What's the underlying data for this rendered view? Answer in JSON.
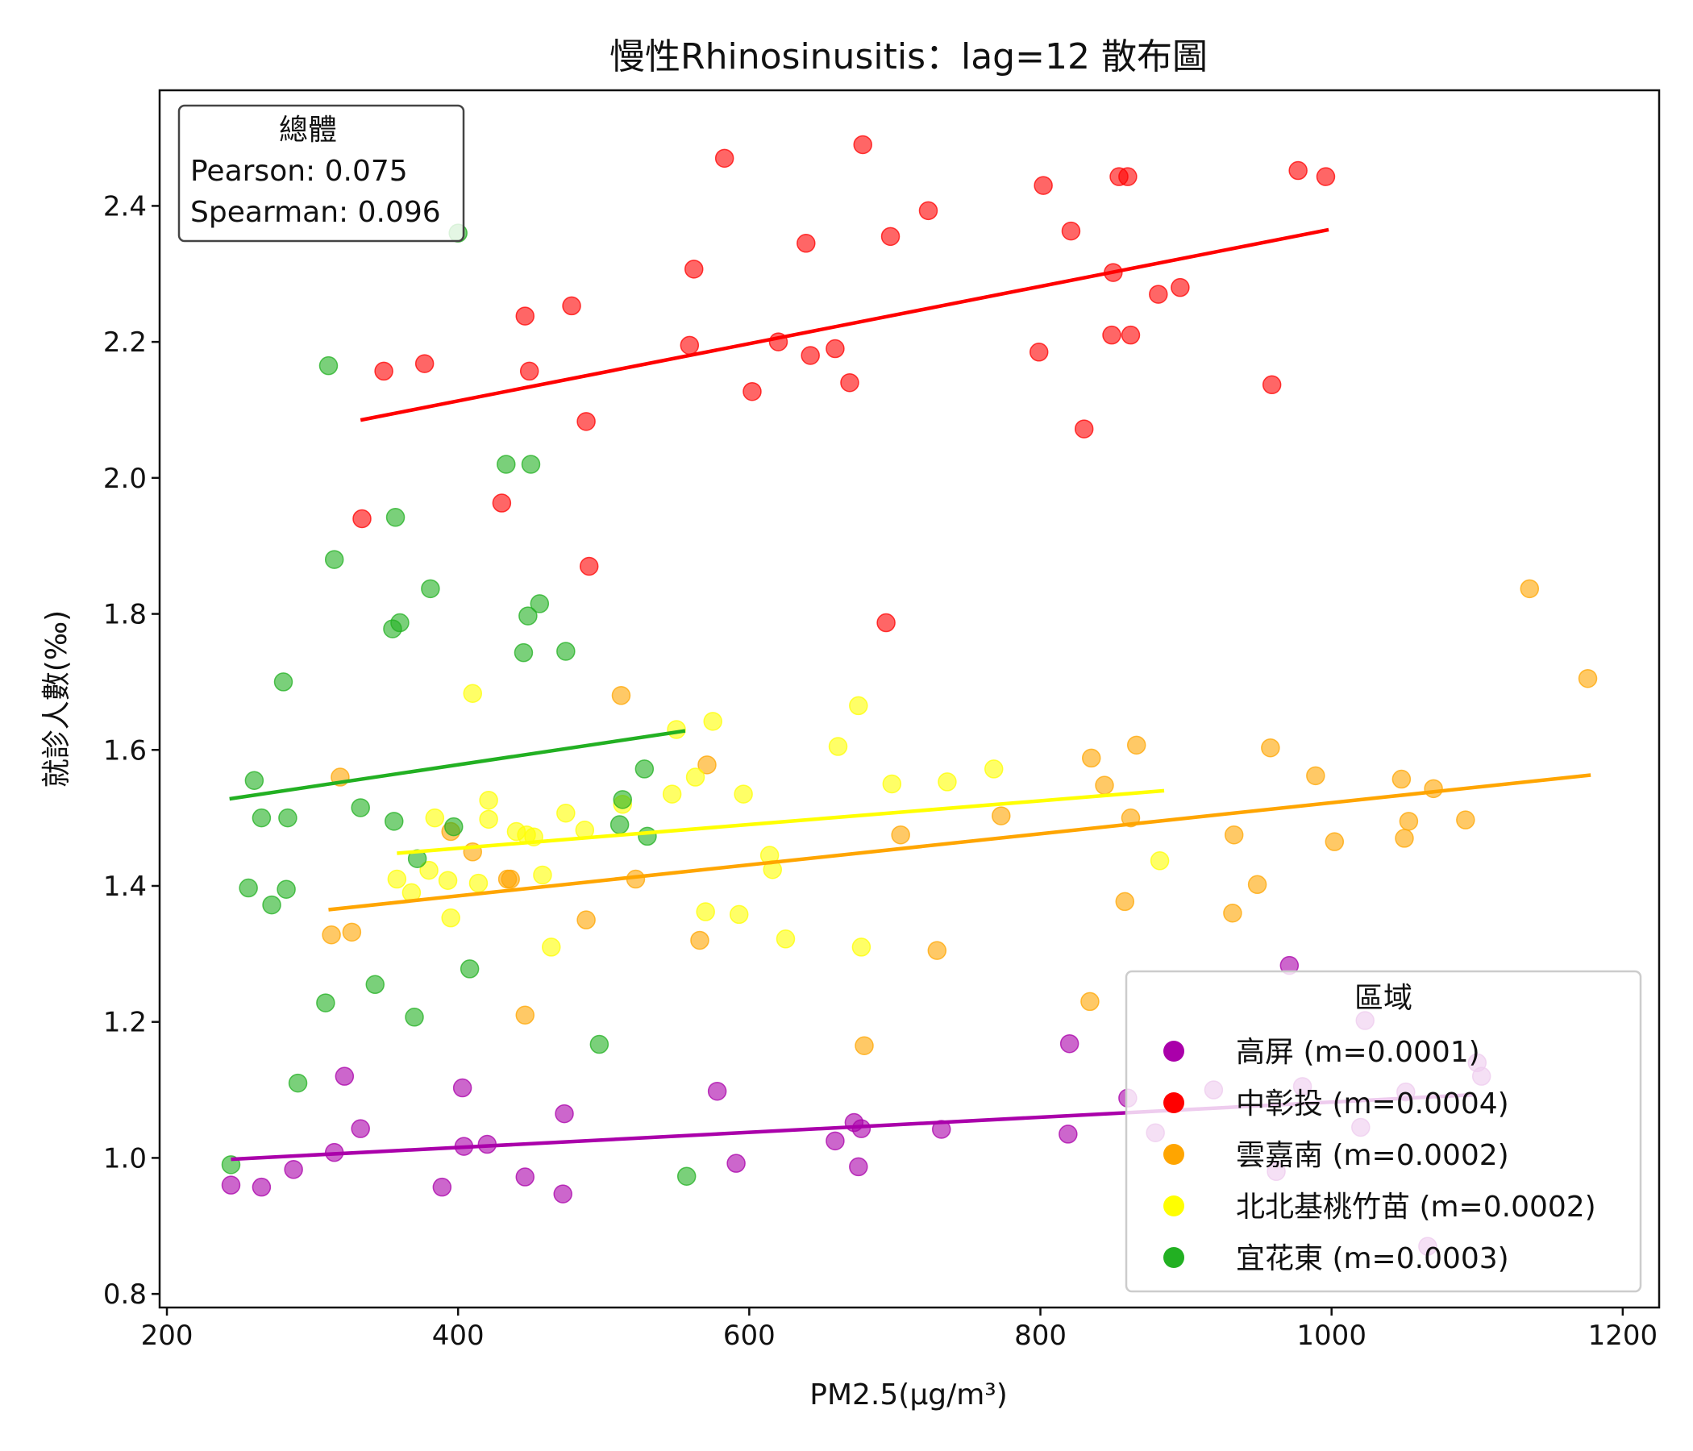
{
  "chart_data": {
    "type": "scatter",
    "title": "慢性Rhinosinusitis：lag=12 散布圖",
    "xlabel": "PM2.5(μg/m³)",
    "ylabel": "就診人數(‰)",
    "xlim": [
      195,
      1225
    ],
    "ylim": [
      0.78,
      2.57
    ],
    "xticks": [
      200,
      400,
      600,
      800,
      1000,
      1200
    ],
    "yticks": [
      0.8,
      1.0,
      1.2,
      1.4,
      1.6,
      1.8,
      2.0,
      2.2,
      2.4
    ],
    "stats_box": {
      "title": "總體",
      "pearson": "Pearson: 0.075",
      "spearman": "Spearman: 0.096"
    },
    "legend": {
      "title": "區域",
      "position": "lower-right"
    },
    "series": [
      {
        "name": "高屏 (m=0.0001)",
        "color": "#aa00aa",
        "trend": [
          [
            244,
            0.998
          ],
          [
            1098,
            1.093
          ]
        ],
        "points": [
          [
            244,
            0.96
          ],
          [
            265,
            0.957
          ],
          [
            287,
            0.983
          ],
          [
            315,
            1.008
          ],
          [
            322,
            1.12
          ],
          [
            333,
            1.043
          ],
          [
            389,
            0.957
          ],
          [
            403,
            1.103
          ],
          [
            404,
            1.017
          ],
          [
            420,
            1.02
          ],
          [
            446,
            0.972
          ],
          [
            472,
            0.947
          ],
          [
            473,
            1.065
          ],
          [
            578,
            1.098
          ],
          [
            591,
            0.992
          ],
          [
            659,
            1.025
          ],
          [
            672,
            1.052
          ],
          [
            675,
            0.987
          ],
          [
            677,
            1.043
          ],
          [
            732,
            1.042
          ],
          [
            819,
            1.035
          ],
          [
            820,
            1.168
          ],
          [
            860,
            1.088
          ],
          [
            879,
            1.037
          ],
          [
            919,
            1.1
          ],
          [
            962,
            0.98
          ],
          [
            971,
            1.283
          ],
          [
            980,
            1.105
          ],
          [
            1020,
            1.045
          ],
          [
            1023,
            1.202
          ],
          [
            1051,
            1.097
          ],
          [
            1066,
            0.87
          ],
          [
            1100,
            1.14
          ],
          [
            1103,
            1.12
          ]
        ]
      },
      {
        "name": "中彰投 (m=0.0004)",
        "color": "#ff0000",
        "trend": [
          [
            333,
            2.085
          ],
          [
            998,
            2.365
          ]
        ],
        "points": [
          [
            334,
            1.94
          ],
          [
            349,
            2.157
          ],
          [
            377,
            2.168
          ],
          [
            430,
            1.963
          ],
          [
            446,
            2.238
          ],
          [
            449,
            2.157
          ],
          [
            478,
            2.253
          ],
          [
            488,
            2.083
          ],
          [
            490,
            1.87
          ],
          [
            559,
            2.195
          ],
          [
            562,
            2.307
          ],
          [
            583,
            2.47
          ],
          [
            602,
            2.127
          ],
          [
            620,
            2.2
          ],
          [
            639,
            2.345
          ],
          [
            642,
            2.18
          ],
          [
            659,
            2.19
          ],
          [
            669,
            2.14
          ],
          [
            678,
            2.49
          ],
          [
            694,
            1.787
          ],
          [
            697,
            2.355
          ],
          [
            723,
            2.393
          ],
          [
            799,
            2.185
          ],
          [
            802,
            2.43
          ],
          [
            821,
            2.363
          ],
          [
            830,
            2.072
          ],
          [
            849,
            2.21
          ],
          [
            850,
            2.302
          ],
          [
            854,
            2.443
          ],
          [
            860,
            2.443
          ],
          [
            862,
            2.21
          ],
          [
            881,
            2.27
          ],
          [
            896,
            2.28
          ],
          [
            959,
            2.137
          ],
          [
            977,
            2.452
          ],
          [
            996,
            2.443
          ]
        ]
      },
      {
        "name": "雲嘉南 (m=0.0002)",
        "color": "#ffa500",
        "trend": [
          [
            311,
            1.365
          ],
          [
            1178,
            1.563
          ]
        ],
        "points": [
          [
            313,
            1.328
          ],
          [
            319,
            1.56
          ],
          [
            327,
            1.332
          ],
          [
            395,
            1.48
          ],
          [
            410,
            1.45
          ],
          [
            434,
            1.41
          ],
          [
            436,
            1.41
          ],
          [
            446,
            1.21
          ],
          [
            488,
            1.35
          ],
          [
            512,
            1.68
          ],
          [
            522,
            1.41
          ],
          [
            566,
            1.32
          ],
          [
            571,
            1.578
          ],
          [
            679,
            1.165
          ],
          [
            704,
            1.475
          ],
          [
            729,
            1.305
          ],
          [
            773,
            1.503
          ],
          [
            834,
            1.23
          ],
          [
            835,
            1.588
          ],
          [
            844,
            1.548
          ],
          [
            858,
            1.377
          ],
          [
            862,
            1.5
          ],
          [
            866,
            1.607
          ],
          [
            932,
            1.36
          ],
          [
            933,
            1.475
          ],
          [
            949,
            1.402
          ],
          [
            958,
            1.603
          ],
          [
            989,
            1.562
          ],
          [
            1002,
            1.465
          ],
          [
            1048,
            1.557
          ],
          [
            1050,
            1.47
          ],
          [
            1053,
            1.495
          ],
          [
            1070,
            1.543
          ],
          [
            1092,
            1.497
          ],
          [
            1136,
            1.837
          ],
          [
            1176,
            1.705
          ]
        ]
      },
      {
        "name": "北北基桃竹苗 (m=0.0002)",
        "color": "#ffff00",
        "trend": [
          [
            358,
            1.448
          ],
          [
            885,
            1.54
          ]
        ],
        "points": [
          [
            358,
            1.41
          ],
          [
            368,
            1.39
          ],
          [
            380,
            1.423
          ],
          [
            384,
            1.5
          ],
          [
            393,
            1.408
          ],
          [
            395,
            1.353
          ],
          [
            410,
            1.683
          ],
          [
            414,
            1.404
          ],
          [
            421,
            1.498
          ],
          [
            421,
            1.526
          ],
          [
            440,
            1.48
          ],
          [
            447,
            1.475
          ],
          [
            452,
            1.472
          ],
          [
            458,
            1.416
          ],
          [
            464,
            1.31
          ],
          [
            474,
            1.507
          ],
          [
            487,
            1.482
          ],
          [
            513,
            1.52
          ],
          [
            547,
            1.535
          ],
          [
            550,
            1.63
          ],
          [
            563,
            1.56
          ],
          [
            570,
            1.362
          ],
          [
            575,
            1.642
          ],
          [
            593,
            1.358
          ],
          [
            596,
            1.535
          ],
          [
            614,
            1.445
          ],
          [
            616,
            1.424
          ],
          [
            625,
            1.322
          ],
          [
            661,
            1.605
          ],
          [
            675,
            1.665
          ],
          [
            677,
            1.31
          ],
          [
            698,
            1.55
          ],
          [
            736,
            1.553
          ],
          [
            768,
            1.572
          ],
          [
            882,
            1.437
          ]
        ]
      },
      {
        "name": "宜花東 (m=0.0003)",
        "color": "#22b022",
        "trend": [
          [
            243,
            1.528
          ],
          [
            556,
            1.628
          ]
        ],
        "points": [
          [
            244,
            0.99
          ],
          [
            256,
            1.397
          ],
          [
            260,
            1.555
          ],
          [
            265,
            1.5
          ],
          [
            272,
            1.372
          ],
          [
            280,
            1.7
          ],
          [
            282,
            1.395
          ],
          [
            283,
            1.5
          ],
          [
            290,
            1.11
          ],
          [
            309,
            1.228
          ],
          [
            311,
            2.165
          ],
          [
            315,
            1.88
          ],
          [
            333,
            1.515
          ],
          [
            343,
            1.255
          ],
          [
            355,
            1.778
          ],
          [
            356,
            1.495
          ],
          [
            357,
            1.942
          ],
          [
            360,
            1.787
          ],
          [
            370,
            1.207
          ],
          [
            372,
            1.44
          ],
          [
            381,
            1.837
          ],
          [
            397,
            1.487
          ],
          [
            400,
            2.36
          ],
          [
            408,
            1.278
          ],
          [
            433,
            2.02
          ],
          [
            445,
            1.743
          ],
          [
            448,
            1.797
          ],
          [
            450,
            2.02
          ],
          [
            456,
            1.815
          ],
          [
            474,
            1.745
          ],
          [
            497,
            1.167
          ],
          [
            511,
            1.49
          ],
          [
            513,
            1.527
          ],
          [
            528,
            1.572
          ],
          [
            530,
            1.473
          ],
          [
            557,
            0.973
          ]
        ]
      }
    ]
  }
}
